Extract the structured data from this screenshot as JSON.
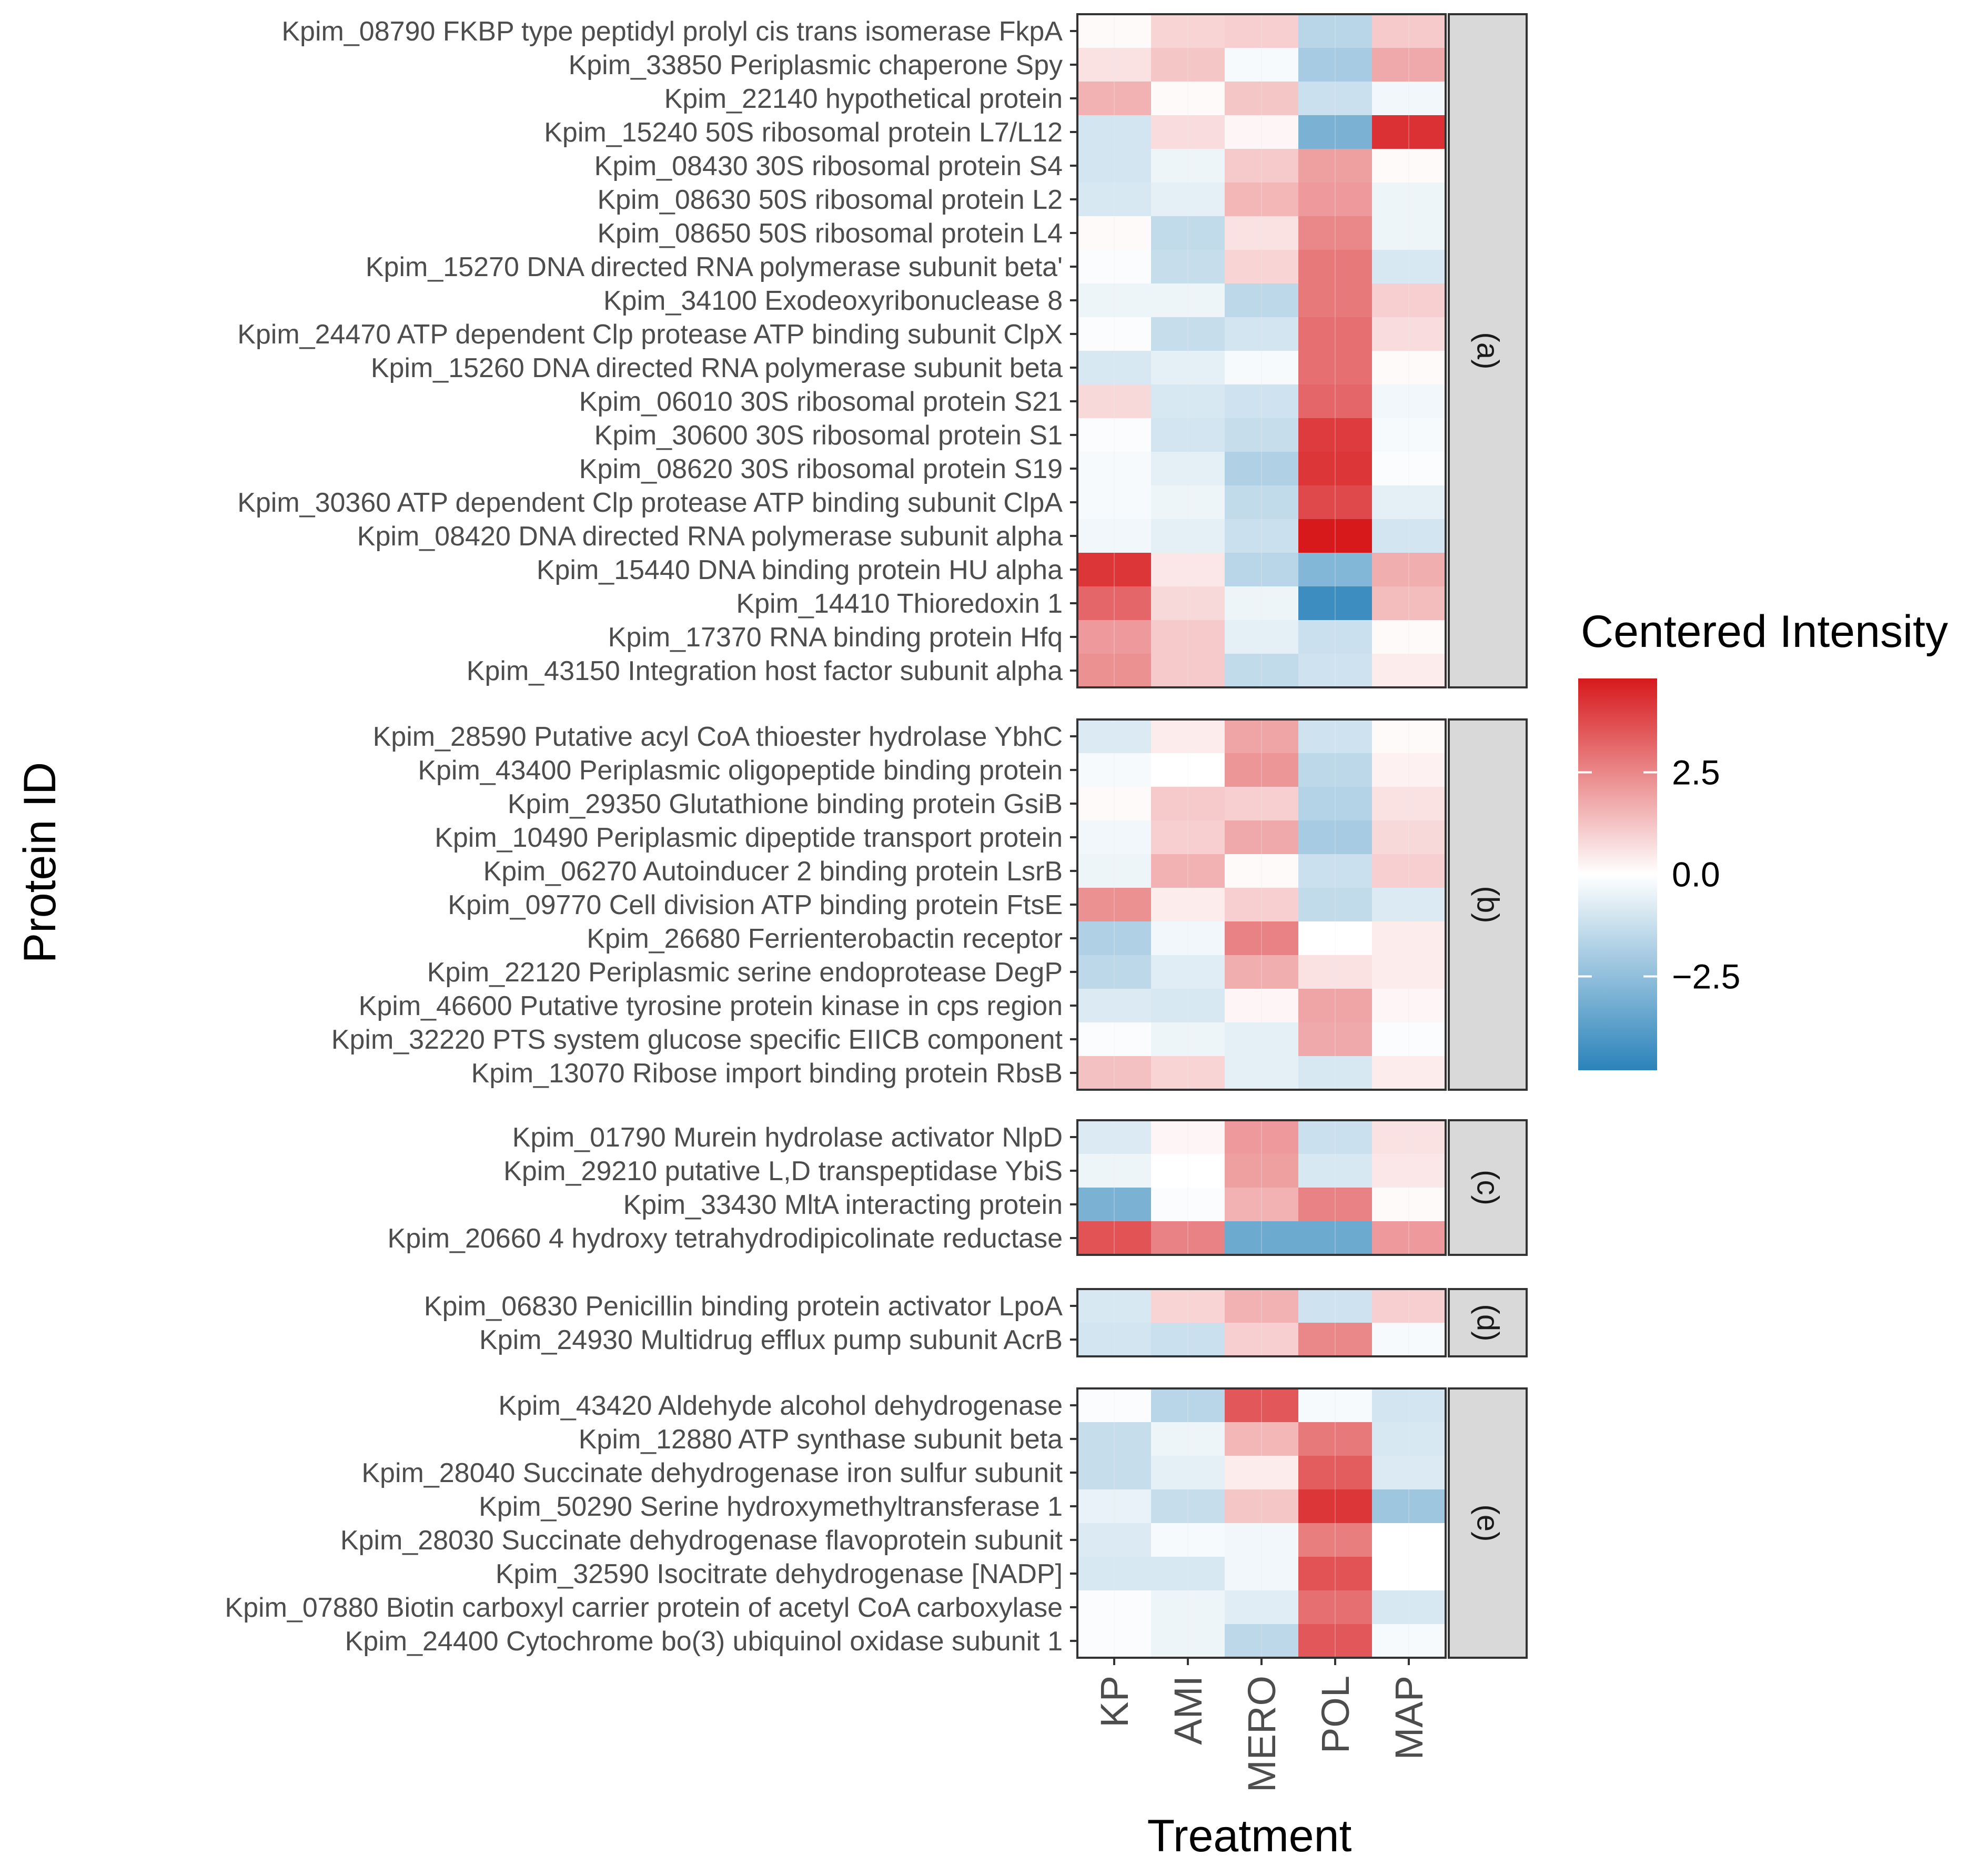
{
  "chart_data": {
    "type": "heatmap",
    "title": "",
    "xlabel": "Treatment",
    "ylabel": "Protein ID",
    "treatments": [
      "KP",
      "AMI",
      "MERO",
      "POL",
      "MAP"
    ],
    "legend": {
      "title": "Centered Intensity",
      "ticks": [
        2.5,
        0.0,
        -2.5
      ],
      "tick_labels": [
        "2.5",
        "0.0",
        "−2.5"
      ],
      "range": [
        -4.8,
        4.8
      ],
      "low_color": "#2b83ba",
      "mid_color": "#ffffff",
      "high_color": "#d7191c"
    },
    "facets": [
      {
        "label": "(a)",
        "rows": [
          {
            "protein": "Kpim_08790 FKBP type peptidyl prolyl cis trans isomerase FkpA",
            "values": [
              0.1,
              0.9,
              1.0,
              -1.6,
              1.1
            ]
          },
          {
            "protein": "Kpim_33850 Periplasmic chaperone Spy",
            "values": [
              0.6,
              1.2,
              -0.2,
              -2.0,
              1.8
            ]
          },
          {
            "protein": "Kpim_22140 hypothetical protein",
            "values": [
              1.6,
              0.1,
              1.2,
              -1.2,
              -0.3
            ]
          },
          {
            "protein": "Kpim_15240 50S ribosomal protein L7/L12",
            "values": [
              -1.0,
              0.7,
              0.2,
              -3.0,
              4.3
            ]
          },
          {
            "protein": "Kpim_08430 30S ribosomal protein S4",
            "values": [
              -1.0,
              -0.4,
              1.1,
              2.0,
              0.1
            ]
          },
          {
            "protein": "Kpim_08630 50S ribosomal protein L2",
            "values": [
              -0.9,
              -0.6,
              1.5,
              2.1,
              -0.4
            ]
          },
          {
            "protein": "Kpim_08650 50S ribosomal protein L4",
            "values": [
              0.1,
              -1.4,
              0.6,
              2.5,
              -0.4
            ]
          },
          {
            "protein": "Kpim_15270 DNA directed RNA polymerase subunit beta'",
            "values": [
              -0.1,
              -1.3,
              0.9,
              2.8,
              -0.9
            ]
          },
          {
            "protein": "Kpim_34100 Exodeoxyribonuclease 8",
            "values": [
              -0.4,
              -0.4,
              -1.5,
              2.8,
              1.0
            ]
          },
          {
            "protein": "Kpim_24470 ATP dependent Clp protease ATP binding subunit ClpX",
            "values": [
              -0.1,
              -1.3,
              -1.0,
              3.0,
              0.7
            ]
          },
          {
            "protein": "Kpim_15260 DNA directed RNA polymerase subunit beta",
            "values": [
              -0.9,
              -0.6,
              -0.2,
              3.0,
              0.1
            ]
          },
          {
            "protein": "Kpim_06010 30S ribosomal protein S21",
            "values": [
              0.8,
              -0.9,
              -1.1,
              3.2,
              -0.3
            ]
          },
          {
            "protein": "Kpim_30600 30S ribosomal protein S1",
            "values": [
              -0.1,
              -1.0,
              -1.3,
              4.1,
              -0.2
            ]
          },
          {
            "protein": "Kpim_08620 30S ribosomal protein S19",
            "values": [
              -0.2,
              -0.6,
              -1.8,
              4.2,
              -0.1
            ]
          },
          {
            "protein": "Kpim_30360 ATP dependent Clp protease ATP binding subunit ClpA",
            "values": [
              -0.2,
              -0.4,
              -1.4,
              3.8,
              -0.6
            ]
          },
          {
            "protein": "Kpim_08420 DNA directed RNA polymerase subunit alpha",
            "values": [
              -0.3,
              -0.6,
              -1.2,
              4.8,
              -1.0
            ]
          },
          {
            "protein": "Kpim_15440 DNA binding protein HU alpha",
            "values": [
              4.2,
              0.5,
              -1.6,
              -2.8,
              1.7
            ]
          },
          {
            "protein": "Kpim_14410 Thioredoxin 1",
            "values": [
              3.2,
              0.8,
              -0.4,
              -4.4,
              1.4
            ]
          },
          {
            "protein": "Kpim_17370 RNA binding protein Hfq",
            "values": [
              2.1,
              1.1,
              -0.6,
              -1.2,
              0.1
            ]
          },
          {
            "protein": "Kpim_43150 Integration host factor subunit alpha",
            "values": [
              2.3,
              1.1,
              -1.4,
              -1.1,
              0.4
            ]
          }
        ]
      },
      {
        "label": "(b)",
        "rows": [
          {
            "protein": "Kpim_28590 Putative acyl CoA thioester hydrolase YbhC",
            "values": [
              -0.8,
              0.4,
              1.9,
              -1.1,
              0.1
            ]
          },
          {
            "protein": "Kpim_43400 Periplasmic oligopeptide binding protein",
            "values": [
              -0.2,
              0.0,
              2.2,
              -1.5,
              0.3
            ]
          },
          {
            "protein": "Kpim_29350 Glutathione binding protein GsiB",
            "values": [
              0.1,
              1.1,
              1.0,
              -1.7,
              0.6
            ]
          },
          {
            "protein": "Kpim_10490 Periplasmic dipeptide transport protein",
            "values": [
              -0.3,
              1.0,
              1.8,
              -2.0,
              0.8
            ]
          },
          {
            "protein": "Kpim_06270 Autoinducer 2 binding protein LsrB",
            "values": [
              -0.4,
              1.6,
              0.1,
              -1.2,
              1.0
            ]
          },
          {
            "protein": "Kpim_09770 Cell division ATP binding protein FtsE",
            "values": [
              2.3,
              0.4,
              1.0,
              -1.4,
              -0.8
            ]
          },
          {
            "protein": "Kpim_26680 Ferrienterobactin receptor",
            "values": [
              -1.8,
              -0.3,
              2.6,
              0.0,
              0.4
            ]
          },
          {
            "protein": "Kpim_22120 Periplasmic serine endoprotease DegP",
            "values": [
              -1.5,
              -0.7,
              1.7,
              0.6,
              0.4
            ]
          },
          {
            "protein": "Kpim_46600 Putative tyrosine protein kinase in cps region",
            "values": [
              -0.8,
              -0.9,
              0.2,
              1.9,
              0.2
            ]
          },
          {
            "protein": "Kpim_32220 PTS system glucose specific EIICB component",
            "values": [
              -0.1,
              -0.4,
              -0.6,
              1.8,
              -0.1
            ]
          },
          {
            "protein": "Kpim_13070 Ribose import binding protein RbsB",
            "values": [
              1.3,
              0.9,
              -0.6,
              -0.9,
              0.4
            ]
          }
        ]
      },
      {
        "label": "(c)",
        "rows": [
          {
            "protein": "Kpim_01790 Murein hydrolase activator NlpD",
            "values": [
              -0.8,
              0.2,
              2.1,
              -1.2,
              0.6
            ]
          },
          {
            "protein": "Kpim_29210 putative L,D transpeptidase YbiS",
            "values": [
              -0.4,
              0.0,
              2.0,
              -0.9,
              0.5
            ]
          },
          {
            "protein": "Kpim_33430 MltA interacting protein",
            "values": [
              -3.0,
              -0.1,
              1.6,
              2.6,
              0.1
            ]
          },
          {
            "protein": "Kpim_20660 4 hydroxy tetrahydrodipicolinate reductase",
            "values": [
              3.6,
              2.6,
              -3.3,
              -3.3,
              2.1
            ]
          }
        ]
      },
      {
        "label": "(d)",
        "rows": [
          {
            "protein": "Kpim_06830 Penicillin binding protein activator LpoA",
            "values": [
              -0.9,
              0.9,
              1.6,
              -1.1,
              1.0
            ]
          },
          {
            "protein": "Kpim_24930 Multidrug efflux pump subunit AcrB",
            "values": [
              -1.0,
              -1.2,
              1.0,
              2.5,
              -0.2
            ]
          }
        ]
      },
      {
        "label": "(e)",
        "rows": [
          {
            "protein": "Kpim_43420 Aldehyde alcohol dehydrogenase",
            "values": [
              -0.1,
              -1.6,
              3.5,
              -0.2,
              -1.0
            ]
          },
          {
            "protein": "Kpim_12880 ATP synthase subunit beta",
            "values": [
              -1.3,
              -0.4,
              1.5,
              2.8,
              -0.9
            ]
          },
          {
            "protein": "Kpim_28040 Succinate dehydrogenase iron sulfur subunit",
            "values": [
              -1.3,
              -0.6,
              0.4,
              3.4,
              -0.8
            ]
          },
          {
            "protein": "Kpim_50290 Serine hydroxymethyltransferase 1",
            "values": [
              -0.5,
              -1.3,
              1.2,
              4.2,
              -2.2
            ]
          },
          {
            "protein": "Kpim_28030 Succinate dehydrogenase flavoprotein subunit",
            "values": [
              -0.8,
              -0.2,
              -0.3,
              2.7,
              0.0
            ]
          },
          {
            "protein": "Kpim_32590 Isocitrate dehydrogenase [NADP]",
            "values": [
              -0.9,
              -0.9,
              -0.3,
              3.6,
              0.0
            ]
          },
          {
            "protein": "Kpim_07880 Biotin carboxyl carrier protein of acetyl CoA carboxylase",
            "values": [
              -0.1,
              -0.4,
              -0.7,
              3.0,
              -0.9
            ]
          },
          {
            "protein": "Kpim_24400 Cytochrome bo(3) ubiquinol oxidase subunit 1",
            "values": [
              -0.1,
              -0.4,
              -1.5,
              3.5,
              -0.2
            ]
          }
        ]
      }
    ]
  }
}
